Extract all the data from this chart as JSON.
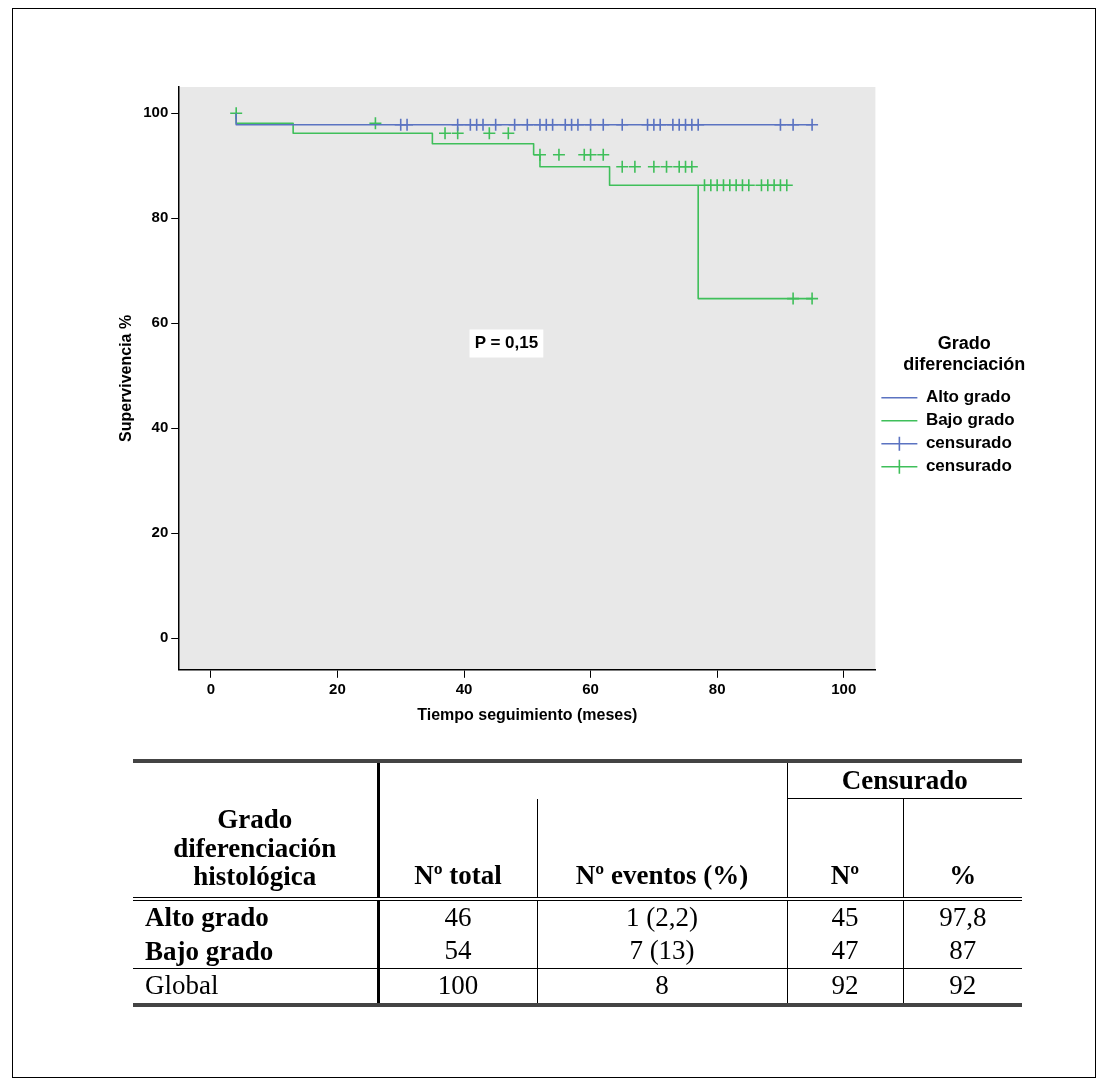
{
  "chart_data": [
    {
      "type": "step",
      "xlabel": "Tiempo seguimiento (meses)",
      "ylabel": "Supervivencia %",
      "legend_title": "Grado diferenciación",
      "legend": "right",
      "grid": false,
      "xlim": [
        -5,
        105
      ],
      "xticks": [
        0,
        20,
        40,
        60,
        80,
        100
      ],
      "ylim": [
        -6,
        105
      ],
      "yticks": [
        0,
        20,
        40,
        60,
        80,
        100
      ],
      "annotations": [
        "P = 0,15"
      ],
      "series": [
        {
          "name": "Alto grado",
          "type": "step",
          "color": "#5b73c1",
          "x": [
            4,
            9,
            95
          ],
          "values": [
            100,
            97.8,
            97.8
          ]
        },
        {
          "name": "Bajo grado",
          "type": "step",
          "color": "#3fbf5a",
          "x": [
            4,
            13,
            35,
            51,
            52,
            63,
            77,
            92,
            95
          ],
          "values": [
            100,
            98.1,
            96.2,
            94.2,
            92.1,
            89.8,
            86.3,
            64.7,
            64.7
          ]
        },
        {
          "name": "censurado",
          "type": "scatter",
          "marker": "cross",
          "color": "#5b73c1",
          "x": [
            30,
            31,
            39,
            41,
            42,
            43,
            45,
            48,
            50,
            52,
            53,
            54,
            56,
            57,
            58,
            60,
            62,
            65,
            69,
            70,
            71,
            73,
            74,
            75,
            76,
            77,
            90,
            92,
            95
          ],
          "values": [
            97.8,
            97.8,
            97.8,
            97.8,
            97.8,
            97.8,
            97.8,
            97.8,
            97.8,
            97.8,
            97.8,
            97.8,
            97.8,
            97.8,
            97.8,
            97.8,
            97.8,
            97.8,
            97.8,
            97.8,
            97.8,
            97.8,
            97.8,
            97.8,
            97.8,
            97.8,
            97.8,
            97.8,
            97.8
          ]
        },
        {
          "name": "censurado",
          "type": "scatter",
          "marker": "cross",
          "color": "#3fbf5a",
          "x": [
            4,
            26,
            37,
            39,
            44,
            47,
            52,
            55,
            59,
            60,
            62,
            65,
            67,
            70,
            72,
            74,
            75,
            76,
            78,
            79,
            80,
            81,
            82,
            83,
            84,
            85,
            87,
            88,
            89,
            90,
            91,
            92,
            95
          ],
          "values": [
            100,
            98.1,
            96.2,
            96.2,
            96.2,
            96.2,
            92.1,
            92.1,
            92.1,
            92.1,
            92.1,
            89.8,
            89.8,
            89.8,
            89.8,
            89.8,
            89.8,
            89.8,
            86.3,
            86.3,
            86.3,
            86.3,
            86.3,
            86.3,
            86.3,
            86.3,
            86.3,
            86.3,
            86.3,
            86.3,
            86.3,
            64.7,
            64.7
          ]
        }
      ]
    },
    {
      "type": "other",
      "categories": [
        "Grado diferenciación histológica",
        "Nº total",
        "Nº eventos (%)",
        "Nº",
        "%"
      ],
      "annotations": [
        "Censurado"
      ],
      "y_categories": [
        "Alto grado",
        "Bajo grado",
        "Global"
      ],
      "cell_labels": [
        [
          "46",
          "1 (2,2)",
          "45",
          "97,8"
        ],
        [
          "54",
          "7 (13)",
          "47",
          "87"
        ],
        [
          "100",
          "8",
          "92",
          "92"
        ]
      ]
    }
  ]
}
